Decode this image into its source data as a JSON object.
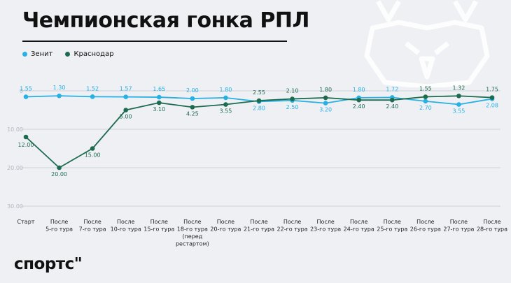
{
  "title": "Чемпионская гонка РПЛ",
  "logo": "спортс\"",
  "colors": {
    "zenit": "#27b0e4",
    "krasnodar": "#1d6b4e",
    "grid": "#cfd3da",
    "background": "#eef0f4"
  },
  "chart_data": {
    "type": "line",
    "title": "Чемпионская гонка РПЛ",
    "y_axis": {
      "reversed": true,
      "ylim": [
        0,
        30
      ],
      "ticks": [
        "0",
        "10.00",
        "20.00",
        "30.00"
      ]
    },
    "grid": true,
    "legend_placement": "top-left",
    "categories": [
      [
        "Старт"
      ],
      [
        "После",
        "5-го тура"
      ],
      [
        "После",
        "7-го тура"
      ],
      [
        "После",
        "10-го тура"
      ],
      [
        "После",
        "15-го тура"
      ],
      [
        "После",
        "18-го тура",
        "(перед",
        "рестартом)"
      ],
      [
        "После",
        "20-го тура"
      ],
      [
        "После",
        "21-го тура"
      ],
      [
        "После",
        "22-го тура"
      ],
      [
        "После",
        "23-го тура"
      ],
      [
        "После",
        "24-го тура"
      ],
      [
        "После",
        "25-го тура"
      ],
      [
        "После",
        "26-го тура"
      ],
      [
        "После",
        "27-го тура"
      ],
      [
        "После",
        "28-го тура"
      ]
    ],
    "series": [
      {
        "name": "Зенит",
        "color": "#27b0e4",
        "values": [
          1.55,
          1.3,
          1.52,
          1.57,
          1.65,
          2.0,
          1.8,
          2.8,
          2.5,
          3.2,
          1.8,
          1.72,
          2.7,
          3.55,
          2.08
        ],
        "labels": [
          "1.55",
          "1.30",
          "1.52",
          "1.57",
          "1.65",
          "2.00",
          "1.80",
          "2.80",
          "2.50",
          "3.20",
          "1.80",
          "1.72",
          "2.70",
          "3.55",
          "2.08"
        ]
      },
      {
        "name": "Краснодар",
        "color": "#1d6b4e",
        "values": [
          12.0,
          20.0,
          15.0,
          5.0,
          3.1,
          4.25,
          3.55,
          2.55,
          2.1,
          1.8,
          2.4,
          2.4,
          1.55,
          1.32,
          1.75
        ],
        "labels": [
          "12.00",
          "20.00",
          "15.00",
          "5.00",
          "3.10",
          "4.25",
          "3.55",
          "2.55",
          "2.10",
          "1.80",
          "2.40",
          "2.40",
          "1.55",
          "1.32",
          "1.75"
        ]
      }
    ]
  }
}
